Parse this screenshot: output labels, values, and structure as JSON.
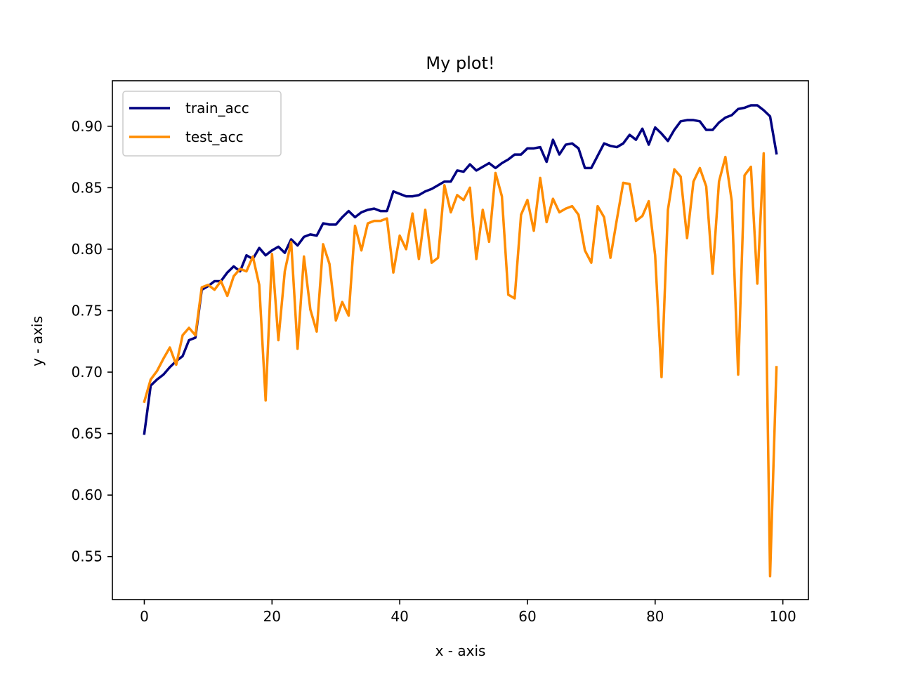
{
  "chart_data": {
    "type": "line",
    "title": "My plot!",
    "xlabel": "x - axis",
    "ylabel": "y - axis",
    "xlim": [
      -5,
      104
    ],
    "ylim": [
      0.515,
      0.937
    ],
    "xticks": [
      0,
      20,
      40,
      60,
      80,
      100
    ],
    "xtick_labels": [
      "0",
      "20",
      "40",
      "60",
      "80",
      "100"
    ],
    "yticks": [
      0.55,
      0.6,
      0.65,
      0.7,
      0.75,
      0.8,
      0.85,
      0.9
    ],
    "ytick_labels": [
      "0.55",
      "0.60",
      "0.65",
      "0.70",
      "0.75",
      "0.80",
      "0.85",
      "0.90"
    ],
    "grid": false,
    "legend": "top-left",
    "x": [
      0,
      1,
      2,
      3,
      4,
      5,
      6,
      7,
      8,
      9,
      10,
      11,
      12,
      13,
      14,
      15,
      16,
      17,
      18,
      19,
      20,
      21,
      22,
      23,
      24,
      25,
      26,
      27,
      28,
      29,
      30,
      31,
      32,
      33,
      34,
      35,
      36,
      37,
      38,
      39,
      40,
      41,
      42,
      43,
      44,
      45,
      46,
      47,
      48,
      49,
      50,
      51,
      52,
      53,
      54,
      55,
      56,
      57,
      58,
      59,
      60,
      61,
      62,
      63,
      64,
      65,
      66,
      67,
      68,
      69,
      70,
      71,
      72,
      73,
      74,
      75,
      76,
      77,
      78,
      79,
      80,
      81,
      82,
      83,
      84,
      85,
      86,
      87,
      88,
      89,
      90,
      91,
      92,
      93,
      94,
      95,
      96,
      97,
      98,
      99
    ],
    "series": [
      {
        "name": "train_acc",
        "color": "#000080",
        "values": [
          0.65,
          0.689,
          0.694,
          0.698,
          0.704,
          0.709,
          0.713,
          0.726,
          0.728,
          0.767,
          0.77,
          0.774,
          0.774,
          0.781,
          0.786,
          0.782,
          0.795,
          0.792,
          0.801,
          0.795,
          0.799,
          0.802,
          0.797,
          0.808,
          0.803,
          0.81,
          0.812,
          0.811,
          0.821,
          0.82,
          0.82,
          0.826,
          0.831,
          0.826,
          0.83,
          0.832,
          0.833,
          0.831,
          0.831,
          0.847,
          0.845,
          0.843,
          0.843,
          0.844,
          0.847,
          0.849,
          0.852,
          0.855,
          0.855,
          0.864,
          0.863,
          0.869,
          0.864,
          0.867,
          0.87,
          0.866,
          0.87,
          0.873,
          0.877,
          0.877,
          0.882,
          0.882,
          0.883,
          0.871,
          0.889,
          0.877,
          0.885,
          0.886,
          0.882,
          0.866,
          0.866,
          0.876,
          0.886,
          0.884,
          0.883,
          0.886,
          0.893,
          0.889,
          0.898,
          0.885,
          0.899,
          0.894,
          0.888,
          0.897,
          0.904,
          0.905,
          0.905,
          0.904,
          0.897,
          0.897,
          0.903,
          0.907,
          0.909,
          0.914,
          0.915,
          0.917,
          0.917,
          0.913,
          0.908,
          0.878
        ]
      },
      {
        "name": "test_acc",
        "color": "#ff8c00",
        "values": [
          0.676,
          0.694,
          0.701,
          0.711,
          0.72,
          0.706,
          0.73,
          0.736,
          0.73,
          0.769,
          0.771,
          0.767,
          0.774,
          0.762,
          0.778,
          0.784,
          0.782,
          0.794,
          0.771,
          0.677,
          0.796,
          0.726,
          0.782,
          0.806,
          0.719,
          0.794,
          0.751,
          0.733,
          0.804,
          0.788,
          0.742,
          0.757,
          0.746,
          0.819,
          0.799,
          0.821,
          0.823,
          0.823,
          0.825,
          0.781,
          0.811,
          0.8,
          0.829,
          0.792,
          0.832,
          0.789,
          0.793,
          0.852,
          0.83,
          0.844,
          0.84,
          0.85,
          0.792,
          0.832,
          0.806,
          0.862,
          0.843,
          0.763,
          0.76,
          0.828,
          0.84,
          0.815,
          0.858,
          0.822,
          0.841,
          0.83,
          0.833,
          0.835,
          0.828,
          0.799,
          0.789,
          0.835,
          0.826,
          0.793,
          0.824,
          0.854,
          0.853,
          0.823,
          0.827,
          0.839,
          0.795,
          0.696,
          0.832,
          0.865,
          0.859,
          0.809,
          0.855,
          0.866,
          0.851,
          0.78,
          0.855,
          0.875,
          0.839,
          0.698,
          0.86,
          0.867,
          0.772,
          0.878,
          0.534,
          0.704
        ]
      }
    ]
  }
}
